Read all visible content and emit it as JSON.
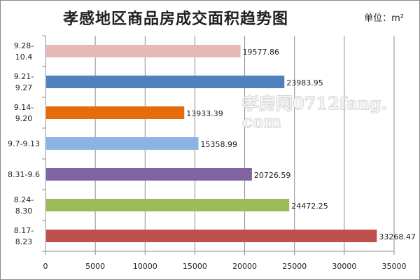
{
  "chart_data": {
    "type": "bar",
    "orientation": "horizontal",
    "title": "孝感地区商品房成交面积趋势图",
    "unit_label": "单位：m²",
    "watermark": "孝房网0712fang.com",
    "categories": [
      "8.17-\n8.23",
      "8.24-\n8.30",
      "8.31-9.6",
      "9.7-9.13",
      "9.14-\n9.20",
      "9.21-\n9.27",
      "9.28-\n10.4"
    ],
    "values": [
      33268.47,
      24472.25,
      20726.59,
      15358.99,
      13933.39,
      23983.95,
      19577.86
    ],
    "value_labels": [
      "33268.47",
      "24472.25",
      "20726.59",
      "15358.99",
      "13933.39",
      "23983.95",
      "19577.86"
    ],
    "colors": [
      "#c0504d",
      "#9bbb59",
      "#8064a2",
      "#8db3e2",
      "#e46c0a",
      "#4f81bd",
      "#e6b9b8"
    ],
    "xlim": [
      0,
      35000
    ],
    "xticks": [
      0,
      5000,
      10000,
      15000,
      20000,
      25000,
      30000,
      35000
    ],
    "grid": true,
    "xlabel": "",
    "ylabel": ""
  }
}
